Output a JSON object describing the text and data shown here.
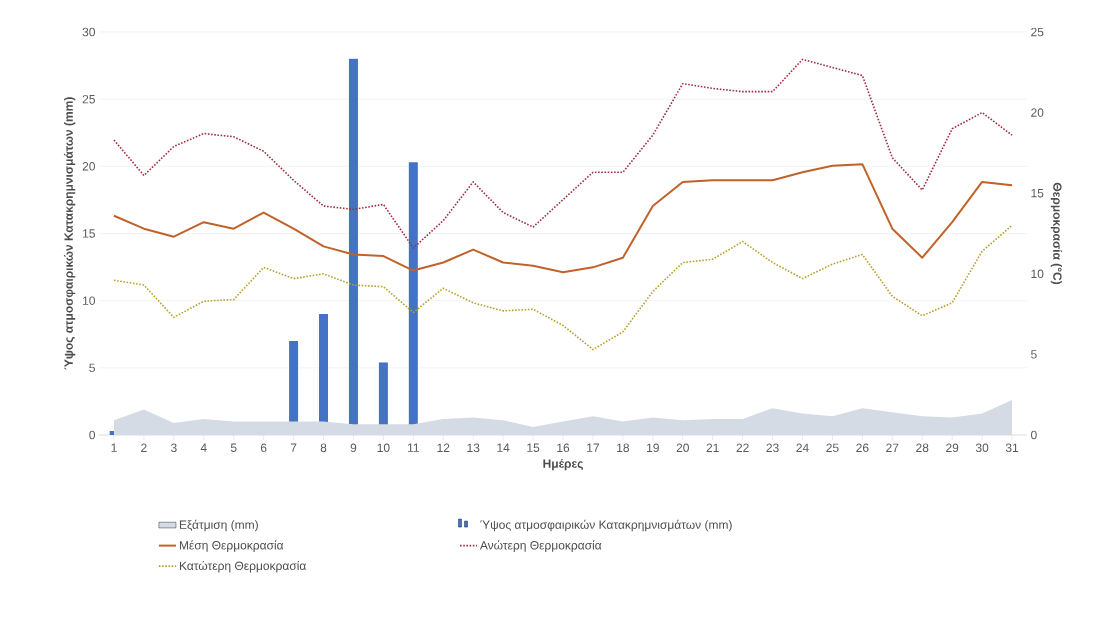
{
  "chart_data": {
    "type": "line",
    "xlabel": "Ημέρες",
    "ylabel": "Ύψος ατμοσφαιρικών Κατακρημνισμάτων (mm)",
    "y2label": "Θερμοκρασία (°C)",
    "categories": [
      "1",
      "2",
      "3",
      "4",
      "5",
      "6",
      "7",
      "8",
      "9",
      "10",
      "11",
      "12",
      "13",
      "14",
      "15",
      "16",
      "17",
      "18",
      "19",
      "20",
      "21",
      "22",
      "23",
      "24",
      "25",
      "26",
      "27",
      "28",
      "29",
      "30",
      "31"
    ],
    "ylim": [
      0,
      30
    ],
    "yticks": [
      0,
      5,
      10,
      15,
      20,
      25,
      30
    ],
    "y2lim": [
      0,
      25
    ],
    "y2ticks": [
      0,
      5,
      10,
      15,
      20,
      25
    ],
    "grid": "y",
    "legend": "bottom",
    "marker": "none",
    "series": [
      {
        "name": "Εξάτμιση (mm)",
        "type": "area",
        "color": "#d5dbe5",
        "values": [
          1.1,
          1.9,
          0.9,
          1.2,
          1.0,
          1.0,
          1.0,
          1.0,
          0.8,
          0.8,
          0.8,
          1.2,
          1.3,
          1.1,
          0.6,
          1.0,
          1.4,
          1.0,
          1.3,
          1.1,
          1.2,
          1.2,
          2.0,
          1.6,
          1.4,
          2.0,
          1.7,
          1.4,
          1.3,
          1.6,
          2.6
        ]
      },
      {
        "name": "Ύψος ατμοσφαιρικών Κατακρημνισμάτων (mm)",
        "type": "bar",
        "color": "#4472c4",
        "values": [
          0.3,
          0,
          0,
          0,
          0,
          0,
          7.0,
          9.0,
          28.0,
          5.4,
          20.3,
          0,
          0,
          0,
          0,
          0,
          0,
          0,
          0,
          0,
          0,
          0,
          0,
          0,
          0,
          0,
          0,
          0,
          0,
          0,
          0
        ]
      },
      {
        "name": "Μέση Θερμοκρασία",
        "axis": "y2",
        "line_style": "solid",
        "color": "#c0622a",
        "values": [
          13.6,
          12.8,
          12.3,
          13.2,
          12.8,
          13.8,
          12.8,
          11.7,
          11.2,
          11.1,
          10.2,
          10.7,
          11.5,
          10.7,
          10.5,
          10.1,
          10.4,
          11.0,
          14.2,
          15.7,
          15.8,
          15.8,
          15.8,
          16.3,
          16.7,
          16.8,
          12.8,
          11.0,
          13.2,
          15.7,
          15.5
        ]
      },
      {
        "name": "Ανώτερη Θερμοκρασία",
        "axis": "y2",
        "line_style": "dotted",
        "color": "#a0303f",
        "values": [
          18.3,
          16.1,
          17.9,
          18.7,
          18.5,
          17.6,
          15.8,
          14.2,
          14.0,
          14.3,
          11.6,
          13.3,
          15.7,
          13.8,
          12.9,
          14.6,
          16.3,
          16.3,
          18.6,
          21.8,
          21.5,
          21.3,
          21.3,
          23.3,
          22.8,
          22.3,
          17.2,
          15.2,
          19.0,
          20.0,
          18.6
        ]
      },
      {
        "name": "Κατώτερη Θερμοκρασία",
        "axis": "y2",
        "line_style": "dotted",
        "color": "#b8a030",
        "values": [
          9.6,
          9.3,
          7.3,
          8.3,
          8.4,
          10.4,
          9.7,
          10.0,
          9.3,
          9.2,
          7.6,
          9.1,
          8.2,
          7.7,
          7.8,
          6.8,
          5.3,
          6.4,
          8.9,
          10.7,
          10.9,
          12.0,
          10.7,
          9.7,
          10.6,
          11.2,
          8.6,
          7.4,
          8.2,
          11.4,
          13.0
        ]
      }
    ]
  }
}
